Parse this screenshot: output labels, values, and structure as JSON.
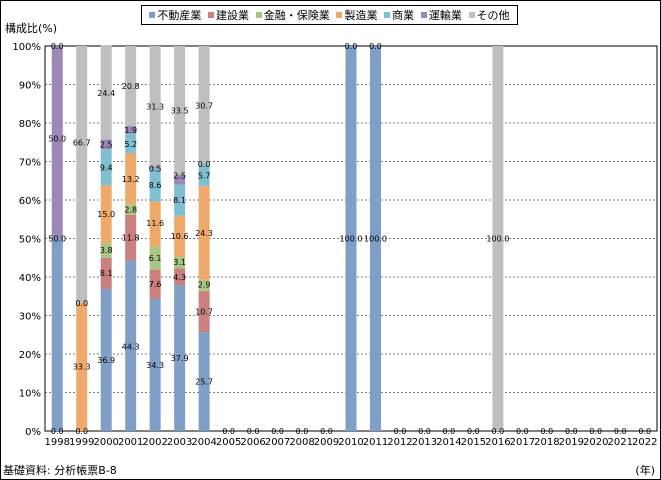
{
  "chart_data": {
    "type": "bar",
    "stacked": true,
    "ylabel": "構成比(%)",
    "xlabel": "(年)",
    "source": "基礎資料: 分析帳票B-8",
    "ylim": [
      0,
      100
    ],
    "yticks": [
      "0%",
      "10%",
      "20%",
      "30%",
      "40%",
      "50%",
      "60%",
      "70%",
      "80%",
      "90%",
      "100%"
    ],
    "grid": true,
    "legend_position": "top",
    "categories": [
      "1998",
      "1999",
      "2000",
      "2001",
      "2002",
      "2003",
      "2004",
      "2005",
      "2006",
      "2007",
      "2008",
      "2009",
      "2010",
      "2011",
      "2012",
      "2013",
      "2014",
      "2015",
      "2016",
      "2017",
      "2018",
      "2019",
      "2020",
      "2021",
      "2022"
    ],
    "series": [
      {
        "name": "不動産業",
        "color": "#7f9fc7",
        "values": [
          50.0,
          0,
          36.9,
          44.3,
          34.3,
          37.9,
          25.7,
          0,
          0,
          0,
          0,
          0,
          100.0,
          100.0,
          0,
          0,
          0,
          0,
          0,
          0,
          0,
          0,
          0,
          0,
          0
        ]
      },
      {
        "name": "建設業",
        "color": "#c9807f",
        "values": [
          0,
          0,
          8.1,
          11.8,
          7.6,
          4.3,
          10.7,
          0,
          0,
          0,
          0,
          0,
          0,
          0,
          0,
          0,
          0,
          0,
          0,
          0,
          0,
          0,
          0,
          0,
          0
        ]
      },
      {
        "name": "金融・保険業",
        "color": "#a9c582",
        "values": [
          0,
          0,
          3.8,
          2.8,
          6.1,
          3.1,
          2.9,
          0,
          0,
          0,
          0,
          0,
          0,
          0,
          0,
          0,
          0,
          0,
          0,
          0,
          0,
          0,
          0,
          0,
          0
        ]
      },
      {
        "name": "製造業",
        "color": "#efa96b",
        "values": [
          0,
          33.3,
          15.0,
          13.2,
          11.6,
          10.6,
          24.3,
          0,
          0,
          0,
          0,
          0,
          0,
          0,
          0,
          0,
          0,
          0,
          0,
          0,
          0,
          0,
          0,
          0,
          0
        ]
      },
      {
        "name": "商業",
        "color": "#7fbfd0",
        "values": [
          0,
          0,
          9.4,
          5.2,
          8.6,
          8.1,
          5.7,
          0,
          0,
          0,
          0,
          0,
          0,
          0,
          0,
          0,
          0,
          0,
          0,
          0,
          0,
          0,
          0,
          0,
          0
        ]
      },
      {
        "name": "運輸業",
        "color": "#9d87b5",
        "values": [
          50.0,
          0,
          2.5,
          1.9,
          0.5,
          2.5,
          0.0,
          0,
          0,
          0,
          0,
          0,
          0.0,
          0.0,
          0,
          0,
          0,
          0,
          0,
          0,
          0,
          0,
          0,
          0,
          0
        ]
      },
      {
        "name": "その他",
        "color": "#bfbfbf",
        "values": [
          0.0,
          66.7,
          24.4,
          20.8,
          31.3,
          33.5,
          30.7,
          0,
          0,
          0,
          0,
          0,
          0.0,
          0.0,
          0,
          0,
          0,
          0,
          100.0,
          0,
          0,
          0,
          0,
          0,
          0
        ]
      }
    ],
    "data_labels": [
      {
        "cat": "1998",
        "y": 0,
        "text": "0.0"
      },
      {
        "cat": "1998",
        "y": 50,
        "text": "50.0"
      },
      {
        "cat": "1998",
        "y": 76,
        "text": "50.0"
      },
      {
        "cat": "1998",
        "y": 100,
        "text": "0.0"
      },
      {
        "cat": "1999",
        "y": 0,
        "text": "0.0"
      },
      {
        "cat": "1999",
        "y": 16.7,
        "text": "33.3"
      },
      {
        "cat": "1999",
        "y": 33.3,
        "text": "0.0"
      },
      {
        "cat": "1999",
        "y": 75,
        "text": "66.7"
      },
      {
        "cat": "2000",
        "y": 18.5,
        "text": "36.9"
      },
      {
        "cat": "2000",
        "y": 41,
        "text": "8.1"
      },
      {
        "cat": "2000",
        "y": 47,
        "text": "3.8"
      },
      {
        "cat": "2000",
        "y": 56.3,
        "text": "15.0"
      },
      {
        "cat": "2000",
        "y": 68.5,
        "text": "9.4"
      },
      {
        "cat": "2000",
        "y": 74.4,
        "text": "2.5"
      },
      {
        "cat": "2000",
        "y": 87.8,
        "text": "24.4"
      },
      {
        "cat": "2001",
        "y": 22,
        "text": "44.3"
      },
      {
        "cat": "2001",
        "y": 50.2,
        "text": "11.8"
      },
      {
        "cat": "2001",
        "y": 57.5,
        "text": "2.8"
      },
      {
        "cat": "2001",
        "y": 65.5,
        "text": "13.2"
      },
      {
        "cat": "2001",
        "y": 74.6,
        "text": "5.2"
      },
      {
        "cat": "2001",
        "y": 78.2,
        "text": "1.9"
      },
      {
        "cat": "2001",
        "y": 89.6,
        "text": "20.8"
      },
      {
        "cat": "2002",
        "y": 17.2,
        "text": "34.3"
      },
      {
        "cat": "2002",
        "y": 38.2,
        "text": "7.6"
      },
      {
        "cat": "2002",
        "y": 45,
        "text": "6.1"
      },
      {
        "cat": "2002",
        "y": 54,
        "text": "11.6"
      },
      {
        "cat": "2002",
        "y": 63.9,
        "text": "8.6"
      },
      {
        "cat": "2002",
        "y": 68.2,
        "text": "0.5"
      },
      {
        "cat": "2002",
        "y": 84.3,
        "text": "31.3"
      },
      {
        "cat": "2003",
        "y": 19,
        "text": "37.9"
      },
      {
        "cat": "2003",
        "y": 40,
        "text": "4.3"
      },
      {
        "cat": "2003",
        "y": 43.9,
        "text": "3.1"
      },
      {
        "cat": "2003",
        "y": 50.6,
        "text": "10.6"
      },
      {
        "cat": "2003",
        "y": 60,
        "text": "8.1"
      },
      {
        "cat": "2003",
        "y": 66.3,
        "text": "2.5"
      },
      {
        "cat": "2003",
        "y": 83.2,
        "text": "33.5"
      },
      {
        "cat": "2004",
        "y": 12.8,
        "text": "25.7"
      },
      {
        "cat": "2004",
        "y": 31,
        "text": "10.7"
      },
      {
        "cat": "2004",
        "y": 38,
        "text": "2.9"
      },
      {
        "cat": "2004",
        "y": 51.4,
        "text": "24.3"
      },
      {
        "cat": "2004",
        "y": 66.4,
        "text": "5.7"
      },
      {
        "cat": "2004",
        "y": 69.4,
        "text": "0.0"
      },
      {
        "cat": "2004",
        "y": 84.6,
        "text": "30.7"
      },
      {
        "cat": "2005",
        "y": 0,
        "text": "0.0"
      },
      {
        "cat": "2006",
        "y": 0,
        "text": "0.0"
      },
      {
        "cat": "2007",
        "y": 0,
        "text": "0.0"
      },
      {
        "cat": "2008",
        "y": 0,
        "text": "0.0"
      },
      {
        "cat": "2009",
        "y": 0,
        "text": "0.0"
      },
      {
        "cat": "2010",
        "y": 50,
        "text": "100.0"
      },
      {
        "cat": "2010",
        "y": 100,
        "text": "0.0"
      },
      {
        "cat": "2011",
        "y": 50,
        "text": "100.0"
      },
      {
        "cat": "2011",
        "y": 100,
        "text": "0.0"
      },
      {
        "cat": "2012",
        "y": 0,
        "text": "0.0"
      },
      {
        "cat": "2013",
        "y": 0,
        "text": "0.0"
      },
      {
        "cat": "2014",
        "y": 0,
        "text": "0.0"
      },
      {
        "cat": "2015",
        "y": 0,
        "text": "0.0"
      },
      {
        "cat": "2016",
        "y": 0,
        "text": "0.0"
      },
      {
        "cat": "2016",
        "y": 50,
        "text": "100.0"
      },
      {
        "cat": "2017",
        "y": 0,
        "text": "0.0"
      },
      {
        "cat": "2018",
        "y": 0,
        "text": "0.0"
      },
      {
        "cat": "2019",
        "y": 0,
        "text": "0.0"
      },
      {
        "cat": "2020",
        "y": 0,
        "text": "0.0"
      },
      {
        "cat": "2021",
        "y": 0,
        "text": "0.0"
      },
      {
        "cat": "2022",
        "y": 0,
        "text": "0.0"
      }
    ]
  }
}
